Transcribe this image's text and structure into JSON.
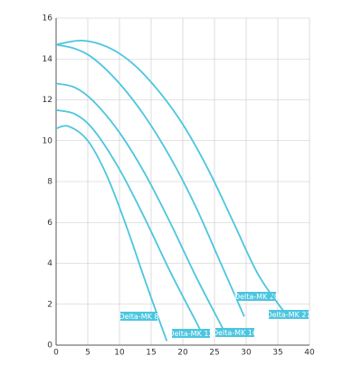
{
  "chart_data": {
    "type": "line",
    "xlim": [
      0,
      40
    ],
    "xticks": [
      0,
      5,
      10,
      15,
      20,
      25,
      30,
      35,
      40
    ],
    "ylim": [
      0,
      16
    ],
    "yticks": [
      0,
      2,
      4,
      6,
      8,
      10,
      12,
      14,
      16
    ],
    "grid": true,
    "series": [
      {
        "name": "Delta-MK 8",
        "color": "#4cc6df",
        "x": [
          0,
          2,
          5,
          8,
          11,
          14,
          17,
          17.5
        ],
        "values": [
          10.6,
          10.7,
          10.0,
          8.3,
          5.9,
          3.2,
          0.6,
          0.2
        ]
      },
      {
        "name": "Delta-MK 12",
        "color": "#4cc6df",
        "x": [
          0,
          3,
          6,
          10,
          14,
          18,
          22,
          23.3
        ],
        "values": [
          11.5,
          11.3,
          10.5,
          8.6,
          6.2,
          3.6,
          1.2,
          0.4
        ]
      },
      {
        "name": "Delta-MK 16",
        "color": "#4cc6df",
        "x": [
          0,
          3,
          6,
          10,
          14,
          18,
          22,
          26,
          27
        ],
        "values": [
          12.8,
          12.6,
          11.9,
          10.4,
          8.4,
          6.0,
          3.4,
          1.0,
          0.4
        ]
      },
      {
        "name": "Delta-MK 20",
        "color": "#4cc6df",
        "x": [
          0,
          3,
          6,
          10,
          14,
          18,
          22,
          26,
          29.7
        ],
        "values": [
          14.7,
          14.5,
          14.0,
          12.8,
          11.2,
          9.2,
          6.8,
          4.0,
          1.4
        ]
      },
      {
        "name": "Delta-MK 27",
        "color": "#4cc6df",
        "x": [
          0,
          4,
          8,
          12,
          16,
          20,
          24,
          28,
          32,
          36.3
        ],
        "values": [
          14.7,
          14.9,
          14.6,
          13.8,
          12.5,
          10.8,
          8.6,
          6.0,
          3.4,
          1.5
        ]
      }
    ]
  }
}
